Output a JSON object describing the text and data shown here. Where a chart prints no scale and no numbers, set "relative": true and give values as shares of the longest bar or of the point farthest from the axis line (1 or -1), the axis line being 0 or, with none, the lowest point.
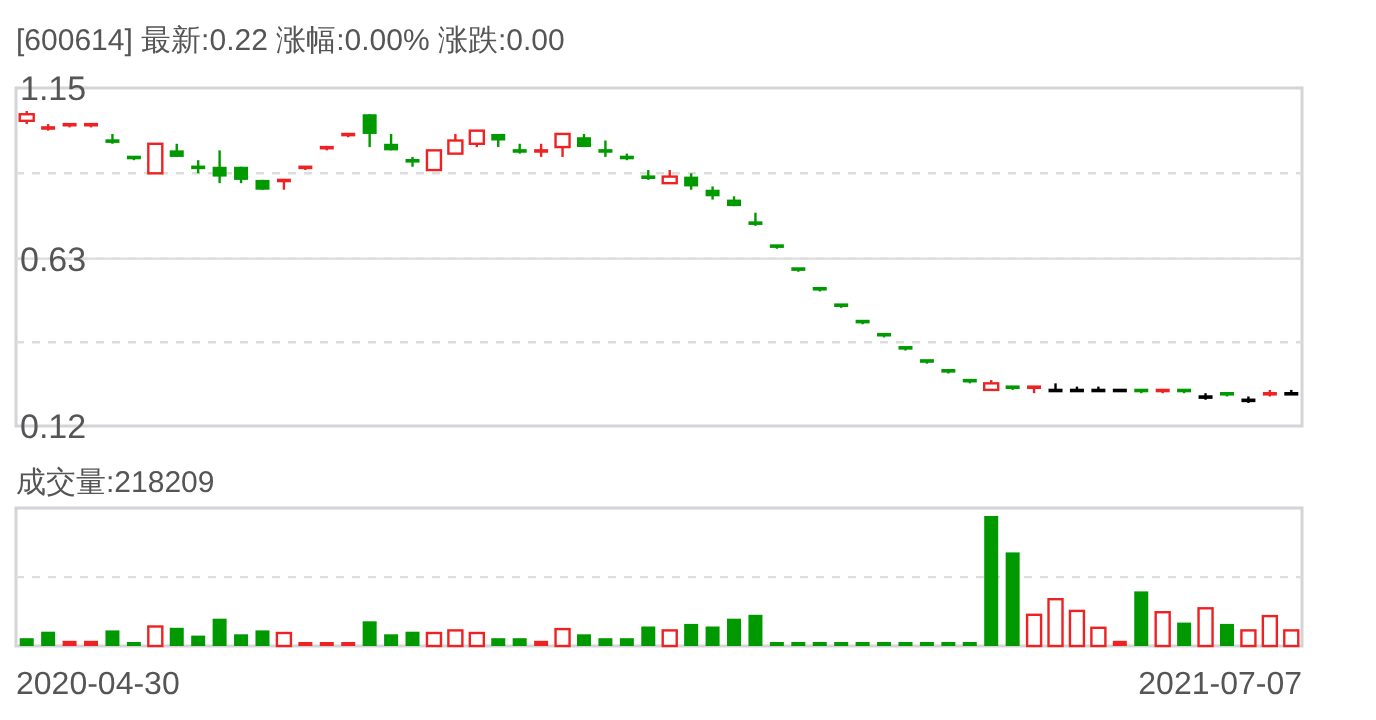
{
  "chart_data": [
    {
      "type": "candlestick",
      "title": "[600614]  最新:0.22  涨幅:0.00%  涨跌:0.00",
      "tick_labels": "y",
      "grid": "y",
      "ylim": [
        0.12,
        1.15
      ],
      "yticks": [
        0.12,
        {
          "value": 0.375,
          "label": null
        },
        0.63,
        {
          "value": 0.89,
          "label": null
        },
        1.15
      ],
      "ref_lines": [
        {
          "axis": "y",
          "value": 0.63,
          "color": "#dddddd",
          "line_style": "solid"
        }
      ],
      "categories": [
        null,
        null,
        null,
        null,
        null,
        null,
        null,
        null,
        null,
        null,
        null,
        null,
        null,
        null,
        null,
        null,
        null,
        null,
        null,
        null,
        null,
        null,
        null,
        null,
        null,
        null,
        null,
        null,
        null,
        null,
        null,
        null,
        null,
        null,
        null,
        null,
        null,
        null,
        null,
        null,
        null,
        null,
        null,
        null,
        null,
        null,
        null,
        null,
        null,
        null,
        null,
        null,
        null,
        null,
        null,
        null,
        null,
        null,
        null,
        null
      ],
      "ohlc": [
        [
          1.05,
          1.08,
          1.04,
          1.07
        ],
        [
          1.02,
          1.04,
          1.02,
          1.03
        ],
        [
          1.03,
          1.04,
          1.03,
          1.04
        ],
        [
          1.03,
          1.04,
          1.03,
          1.04
        ],
        [
          0.99,
          1.01,
          0.98,
          0.98
        ],
        [
          0.94,
          0.94,
          0.93,
          0.93
        ],
        [
          0.89,
          0.98,
          0.89,
          0.98
        ],
        [
          0.96,
          0.98,
          0.94,
          0.94
        ],
        [
          0.91,
          0.93,
          0.89,
          0.9
        ],
        [
          0.91,
          0.96,
          0.86,
          0.88
        ],
        [
          0.91,
          0.91,
          0.86,
          0.87
        ],
        [
          0.87,
          0.87,
          0.84,
          0.84
        ],
        [
          0.86,
          0.87,
          0.84,
          0.87
        ],
        [
          0.9,
          0.91,
          0.9,
          0.91
        ],
        [
          0.96,
          0.97,
          0.96,
          0.97
        ],
        [
          1.0,
          1.01,
          1.0,
          1.01
        ],
        [
          1.07,
          1.07,
          0.97,
          1.01
        ],
        [
          0.98,
          1.01,
          0.96,
          0.96
        ],
        [
          0.93,
          0.94,
          0.91,
          0.92
        ],
        [
          0.9,
          0.96,
          0.9,
          0.96
        ],
        [
          0.95,
          1.01,
          0.95,
          0.99
        ],
        [
          0.98,
          1.02,
          0.97,
          1.02
        ],
        [
          1.01,
          1.01,
          0.97,
          0.99
        ],
        [
          0.96,
          0.98,
          0.95,
          0.95
        ],
        [
          0.95,
          0.98,
          0.94,
          0.96
        ],
        [
          0.97,
          1.01,
          0.94,
          1.01
        ],
        [
          1.0,
          1.01,
          0.97,
          0.97
        ],
        [
          0.96,
          0.99,
          0.94,
          0.95
        ],
        [
          0.94,
          0.95,
          0.93,
          0.93
        ],
        [
          0.88,
          0.9,
          0.87,
          0.87
        ],
        [
          0.86,
          0.9,
          0.86,
          0.88
        ],
        [
          0.88,
          0.89,
          0.84,
          0.85
        ],
        [
          0.84,
          0.85,
          0.81,
          0.82
        ],
        [
          0.81,
          0.82,
          0.79,
          0.79
        ],
        [
          0.74,
          0.77,
          0.73,
          0.73
        ],
        [
          0.67,
          0.67,
          0.66,
          0.66
        ],
        [
          0.6,
          0.6,
          0.59,
          0.59
        ],
        [
          0.54,
          0.54,
          0.53,
          0.53
        ],
        [
          0.49,
          0.49,
          0.48,
          0.48
        ],
        [
          0.44,
          0.44,
          0.43,
          0.43
        ],
        [
          0.4,
          0.4,
          0.39,
          0.39
        ],
        [
          0.36,
          0.36,
          0.35,
          0.35
        ],
        [
          0.32,
          0.32,
          0.31,
          0.31
        ],
        [
          0.29,
          0.29,
          0.28,
          0.28
        ],
        [
          0.26,
          0.26,
          0.25,
          0.25
        ],
        [
          0.23,
          0.26,
          0.23,
          0.25
        ],
        [
          0.24,
          0.24,
          0.23,
          0.23
        ],
        [
          0.23,
          0.24,
          0.22,
          0.24
        ],
        [
          0.23,
          0.25,
          0.23,
          0.23
        ],
        [
          0.23,
          0.24,
          0.23,
          0.23
        ],
        [
          0.23,
          0.24,
          0.23,
          0.23
        ],
        [
          0.23,
          0.23,
          0.23,
          0.23
        ],
        [
          0.23,
          0.23,
          0.22,
          0.22
        ],
        [
          0.22,
          0.23,
          0.22,
          0.23
        ],
        [
          0.23,
          0.23,
          0.22,
          0.22
        ],
        [
          0.21,
          0.22,
          0.2,
          0.21
        ],
        [
          0.22,
          0.22,
          0.21,
          0.21
        ],
        [
          0.2,
          0.21,
          0.19,
          0.2
        ],
        [
          0.21,
          0.23,
          0.21,
          0.22
        ],
        [
          0.22,
          0.23,
          0.22,
          0.22
        ]
      ],
      "colors": [
        "#ee2222",
        "#ee2222",
        "#ee2222",
        "#ee2222",
        "#009900",
        "#009900",
        "#ee2222",
        "#009900",
        "#009900",
        "#009900",
        "#009900",
        "#009900",
        "#ee2222",
        "#ee2222",
        "#ee2222",
        "#ee2222",
        "#009900",
        "#009900",
        "#009900",
        "#ee2222",
        "#ee2222",
        "#ee2222",
        "#009900",
        "#009900",
        "#ee2222",
        "#ee2222",
        "#009900",
        "#009900",
        "#009900",
        "#009900",
        "#ee2222",
        "#009900",
        "#009900",
        "#009900",
        "#009900",
        "#009900",
        "#009900",
        "#009900",
        "#009900",
        "#009900",
        "#009900",
        "#009900",
        "#009900",
        "#009900",
        "#009900",
        "#ee2222",
        "#009900",
        "#ee2222",
        "#000000",
        "#000000",
        "#000000",
        "#000000",
        "#009900",
        "#ee2222",
        "#009900",
        "#000000",
        "#009900",
        "#000000",
        "#ee2222",
        "#000000"
      ]
    },
    {
      "type": "bar",
      "title": "成交量:218209",
      "relative": true,
      "ref_lines": [
        {
          "axis": "y",
          "value": 0.53,
          "color": "#dddddd",
          "line_style": "dashed"
        }
      ],
      "annotations": [
        "2020-04-30",
        "2021-07-07"
      ],
      "categories": [
        null,
        null,
        null,
        null,
        null,
        null,
        null,
        null,
        null,
        null,
        null,
        null,
        null,
        null,
        null,
        null,
        null,
        null,
        null,
        null,
        null,
        null,
        null,
        null,
        null,
        null,
        null,
        null,
        null,
        null,
        null,
        null,
        null,
        null,
        null,
        null,
        null,
        null,
        null,
        null,
        null,
        null,
        null,
        null,
        null,
        null,
        null,
        null,
        null,
        null,
        null,
        null,
        null,
        null,
        null,
        null,
        null,
        null,
        null,
        null
      ],
      "values": [
        0.06,
        0.11,
        0.04,
        0.04,
        0.12,
        0.03,
        0.15,
        0.14,
        0.08,
        0.21,
        0.09,
        0.12,
        0.1,
        0.01,
        0.01,
        0.01,
        0.19,
        0.09,
        0.11,
        0.1,
        0.12,
        0.1,
        0.06,
        0.06,
        0.04,
        0.13,
        0.09,
        0.06,
        0.06,
        0.15,
        0.12,
        0.17,
        0.15,
        0.21,
        0.24,
        0.01,
        0.01,
        0.01,
        0.01,
        0.01,
        0.01,
        0.01,
        0.01,
        0.01,
        0.01,
        1,
        0.72,
        0.24,
        0.36,
        0.27,
        0.14,
        0.04,
        0.42,
        0.26,
        0.18,
        0.29,
        0.17,
        0.12,
        0.23,
        0.12
      ],
      "colors": [
        "#009900",
        "#009900",
        "#ee2222",
        "#ee2222",
        "#009900",
        "#009900",
        "#ee2222",
        "#009900",
        "#009900",
        "#009900",
        "#009900",
        "#009900",
        "#ee2222",
        "#ee2222",
        "#ee2222",
        "#ee2222",
        "#009900",
        "#009900",
        "#009900",
        "#ee2222",
        "#ee2222",
        "#ee2222",
        "#009900",
        "#009900",
        "#ee2222",
        "#ee2222",
        "#009900",
        "#009900",
        "#009900",
        "#009900",
        "#ee2222",
        "#009900",
        "#009900",
        "#009900",
        "#009900",
        "#009900",
        "#009900",
        "#009900",
        "#009900",
        "#009900",
        "#009900",
        "#009900",
        "#009900",
        "#009900",
        "#009900",
        "#009900",
        "#009900",
        "#ee2222",
        "#ee2222",
        "#ee2222",
        "#ee2222",
        "#ee2222",
        "#009900",
        "#ee2222",
        "#009900",
        "#ee2222",
        "#009900",
        "#ee2222",
        "#ee2222",
        "#ee2222"
      ]
    }
  ]
}
